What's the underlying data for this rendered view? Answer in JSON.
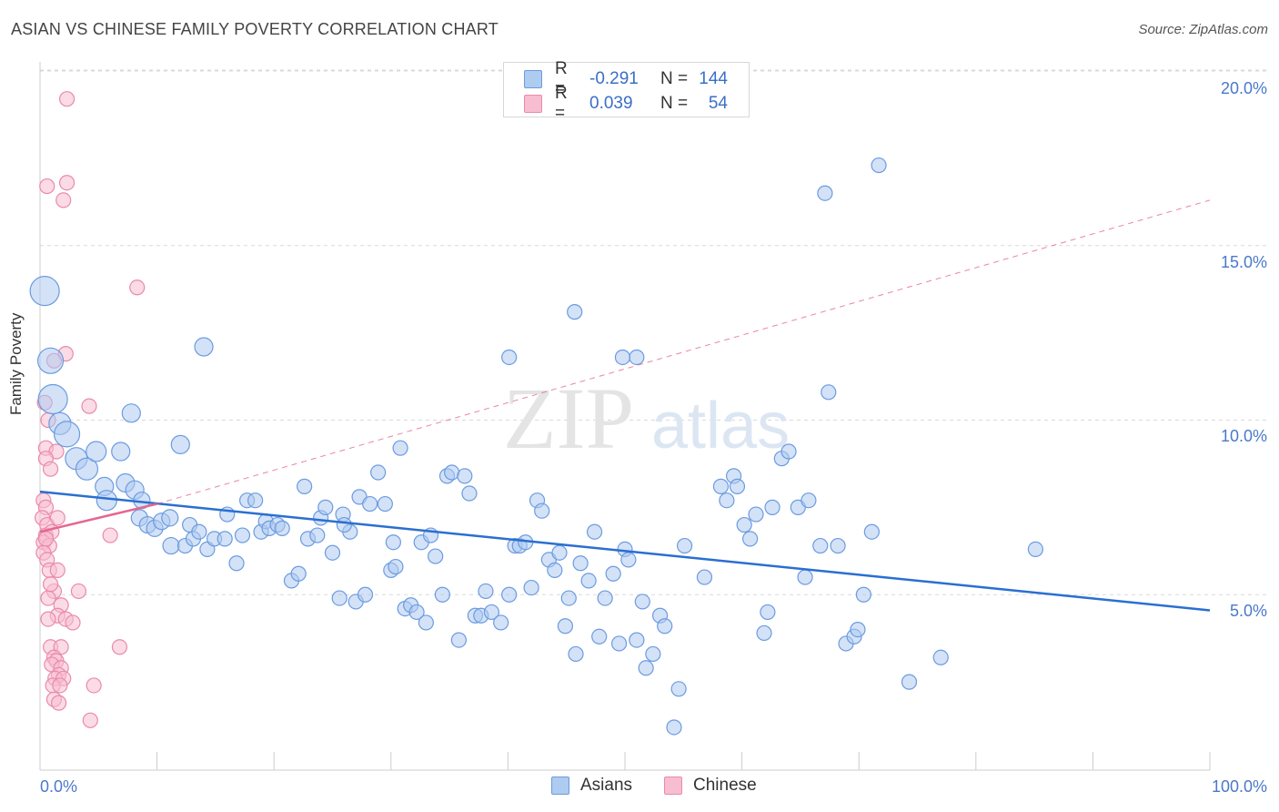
{
  "title": "ASIAN VS CHINESE FAMILY POVERTY CORRELATION CHART",
  "source": "Source: ZipAtlas.com",
  "watermark": {
    "zip": "ZIP",
    "atlas": "atlas"
  },
  "legend_top": {
    "rows": [
      {
        "r_label": "R =",
        "r_value": "-0.291",
        "n_label": "N =",
        "n_value": "144"
      },
      {
        "r_label": "R =",
        "r_value": "0.039",
        "n_label": "N =",
        "n_value": "54"
      }
    ]
  },
  "legend_bottom": {
    "series1": "Asians",
    "series2": "Chinese"
  },
  "colors": {
    "asian_fill": "#aecbf0",
    "asian_stroke": "#6b9be0",
    "asian_line": "#2a6fd1",
    "chinese_fill": "#f7bdd0",
    "chinese_stroke": "#e98aab",
    "chinese_line": "#e4678f",
    "grid": "#d9d9d9",
    "tick_text": "#4a79c9"
  },
  "chart_data": {
    "type": "scatter",
    "title": "ASIAN VS CHINESE FAMILY POVERTY CORRELATION CHART",
    "xlabel": "",
    "ylabel": "Family Poverty",
    "xlim": [
      0,
      100
    ],
    "ylim": [
      0,
      20
    ],
    "x_tick_labels": [
      "0.0%",
      "100.0%"
    ],
    "y_ticks": [
      5,
      10,
      15,
      20
    ],
    "y_tick_labels": [
      "5.0%",
      "10.0%",
      "15.0%",
      "20.0%"
    ],
    "series": [
      {
        "name": "Asians",
        "r": -0.291,
        "n": 144,
        "trend": {
          "x": [
            0,
            100
          ],
          "y": [
            7.95,
            4.55
          ]
        },
        "points": [
          [
            0.4,
            13.7,
            16
          ],
          [
            0.9,
            11.7,
            14
          ],
          [
            1.1,
            10.6,
            16
          ],
          [
            1.7,
            9.9,
            12
          ],
          [
            2.3,
            9.6,
            14
          ],
          [
            3.1,
            8.9,
            12
          ],
          [
            4.0,
            8.6,
            12
          ],
          [
            4.8,
            9.1,
            11
          ],
          [
            5.5,
            8.1,
            10
          ],
          [
            5.7,
            7.7,
            11
          ],
          [
            6.9,
            9.1,
            10
          ],
          [
            7.3,
            8.2,
            10
          ],
          [
            7.8,
            10.2,
            10
          ],
          [
            8.1,
            8.0,
            10
          ],
          [
            8.7,
            7.7,
            9
          ],
          [
            8.5,
            7.2,
            9
          ],
          [
            9.2,
            7.0,
            9
          ],
          [
            9.8,
            6.9,
            9
          ],
          [
            10.4,
            7.1,
            9
          ],
          [
            11.1,
            7.2,
            9
          ],
          [
            11.2,
            6.4,
            9
          ],
          [
            12.0,
            9.3,
            10
          ],
          [
            12.4,
            6.4,
            8
          ],
          [
            12.8,
            7.0,
            8
          ],
          [
            13.1,
            6.6,
            8
          ],
          [
            13.6,
            6.8,
            8
          ],
          [
            14.3,
            6.3,
            8
          ],
          [
            14.9,
            6.6,
            8
          ],
          [
            14.0,
            12.1,
            10
          ],
          [
            15.8,
            6.6,
            8
          ],
          [
            16.0,
            7.3,
            8
          ],
          [
            16.8,
            5.9,
            8
          ],
          [
            17.3,
            6.7,
            8
          ],
          [
            17.7,
            7.7,
            8
          ],
          [
            18.4,
            7.7,
            8
          ],
          [
            18.9,
            6.8,
            8
          ],
          [
            19.3,
            7.1,
            8
          ],
          [
            19.6,
            6.9,
            8
          ],
          [
            20.3,
            7.0,
            8
          ],
          [
            20.7,
            6.9,
            8
          ],
          [
            21.5,
            5.4,
            8
          ],
          [
            22.1,
            5.6,
            8
          ],
          [
            22.6,
            8.1,
            8
          ],
          [
            22.9,
            6.6,
            8
          ],
          [
            23.7,
            6.7,
            8
          ],
          [
            24.0,
            7.2,
            8
          ],
          [
            24.4,
            7.5,
            8
          ],
          [
            25.0,
            6.2,
            8
          ],
          [
            25.6,
            4.9,
            8
          ],
          [
            25.9,
            7.3,
            8
          ],
          [
            26.5,
            6.8,
            8
          ],
          [
            27.0,
            4.8,
            8
          ],
          [
            27.3,
            7.8,
            8
          ],
          [
            27.8,
            5.0,
            8
          ],
          [
            28.2,
            7.6,
            8
          ],
          [
            28.9,
            8.5,
            8
          ],
          [
            29.5,
            7.6,
            8
          ],
          [
            30.0,
            5.7,
            8
          ],
          [
            30.4,
            5.8,
            8
          ],
          [
            30.8,
            9.2,
            8
          ],
          [
            31.2,
            4.6,
            8
          ],
          [
            31.7,
            4.7,
            8
          ],
          [
            32.2,
            4.5,
            8
          ],
          [
            32.6,
            6.5,
            8
          ],
          [
            33.0,
            4.2,
            8
          ],
          [
            33.4,
            6.7,
            8
          ],
          [
            33.8,
            6.1,
            8
          ],
          [
            34.4,
            5.0,
            8
          ],
          [
            34.8,
            8.4,
            8
          ],
          [
            35.2,
            8.5,
            8
          ],
          [
            35.8,
            3.7,
            8
          ],
          [
            36.3,
            8.4,
            8
          ],
          [
            36.7,
            7.9,
            8
          ],
          [
            37.2,
            4.4,
            8
          ],
          [
            37.7,
            4.4,
            8
          ],
          [
            38.1,
            5.1,
            8
          ],
          [
            38.6,
            4.5,
            8
          ],
          [
            39.4,
            4.2,
            8
          ],
          [
            40.1,
            5.0,
            8
          ],
          [
            40.6,
            6.4,
            8
          ],
          [
            41.0,
            6.4,
            8
          ],
          [
            41.5,
            6.5,
            8
          ],
          [
            42.0,
            5.2,
            8
          ],
          [
            42.5,
            7.7,
            8
          ],
          [
            42.9,
            7.4,
            8
          ],
          [
            43.5,
            6.0,
            8
          ],
          [
            44.0,
            5.7,
            8
          ],
          [
            44.4,
            6.2,
            8
          ],
          [
            44.9,
            4.1,
            8
          ],
          [
            45.2,
            4.9,
            8
          ],
          [
            45.8,
            3.3,
            8
          ],
          [
            46.2,
            5.9,
            8
          ],
          [
            46.9,
            5.4,
            8
          ],
          [
            47.4,
            6.8,
            8
          ],
          [
            47.8,
            3.8,
            8
          ],
          [
            48.3,
            4.9,
            8
          ],
          [
            49.0,
            5.6,
            8
          ],
          [
            49.5,
            3.6,
            8
          ],
          [
            50.0,
            6.3,
            8
          ],
          [
            50.3,
            6.0,
            8
          ],
          [
            51.0,
            3.7,
            8
          ],
          [
            51.5,
            4.8,
            8
          ],
          [
            51.8,
            2.9,
            8
          ],
          [
            52.4,
            3.3,
            8
          ],
          [
            53.0,
            4.4,
            8
          ],
          [
            53.4,
            4.1,
            8
          ],
          [
            54.2,
            1.2,
            8
          ],
          [
            54.6,
            2.3,
            8
          ],
          [
            55.1,
            6.4,
            8
          ],
          [
            56.8,
            5.5,
            8
          ],
          [
            58.2,
            8.1,
            8
          ],
          [
            58.7,
            7.7,
            8
          ],
          [
            59.3,
            8.4,
            8
          ],
          [
            59.6,
            8.1,
            8
          ],
          [
            60.2,
            7.0,
            8
          ],
          [
            60.7,
            6.6,
            8
          ],
          [
            61.2,
            7.3,
            8
          ],
          [
            61.9,
            3.9,
            8
          ],
          [
            62.2,
            4.5,
            8
          ],
          [
            62.6,
            7.5,
            8
          ],
          [
            63.4,
            8.9,
            8
          ],
          [
            64.0,
            9.1,
            8
          ],
          [
            64.8,
            7.5,
            8
          ],
          [
            65.4,
            5.5,
            8
          ],
          [
            65.7,
            7.7,
            8
          ],
          [
            66.7,
            6.4,
            8
          ],
          [
            67.1,
            16.5,
            8
          ],
          [
            67.4,
            10.8,
            8
          ],
          [
            68.2,
            6.4,
            8
          ],
          [
            68.9,
            3.6,
            8
          ],
          [
            69.6,
            3.8,
            8
          ],
          [
            69.9,
            4.0,
            8
          ],
          [
            70.4,
            5.0,
            8
          ],
          [
            71.1,
            6.8,
            8
          ],
          [
            71.7,
            17.3,
            8
          ],
          [
            74.3,
            2.5,
            8
          ],
          [
            77.0,
            3.2,
            8
          ],
          [
            85.1,
            6.3,
            8
          ],
          [
            51.0,
            11.8,
            8
          ],
          [
            49.8,
            11.8,
            8
          ],
          [
            45.7,
            13.1,
            8
          ],
          [
            40.1,
            11.8,
            8
          ],
          [
            26.0,
            7.0,
            8
          ],
          [
            30.2,
            6.5,
            8
          ]
        ]
      },
      {
        "name": "Chinese",
        "r": 0.039,
        "n": 54,
        "trend": {
          "x": [
            0,
            10
          ],
          "y": [
            6.8,
            7.6
          ]
        },
        "trend_dashed": {
          "x": [
            10,
            100
          ],
          "y": [
            7.6,
            16.3
          ]
        },
        "points": [
          [
            2.3,
            19.2,
            8
          ],
          [
            0.6,
            16.7,
            8
          ],
          [
            2.3,
            16.8,
            8
          ],
          [
            2.0,
            16.3,
            8
          ],
          [
            8.3,
            13.8,
            8
          ],
          [
            1.2,
            11.7,
            8
          ],
          [
            2.2,
            11.9,
            8
          ],
          [
            0.4,
            10.5,
            8
          ],
          [
            4.2,
            10.4,
            8
          ],
          [
            0.7,
            10.0,
            8
          ],
          [
            0.5,
            9.2,
            8
          ],
          [
            1.4,
            9.1,
            8
          ],
          [
            0.5,
            8.9,
            8
          ],
          [
            0.9,
            8.6,
            8
          ],
          [
            0.3,
            7.7,
            8
          ],
          [
            0.5,
            7.5,
            8
          ],
          [
            0.2,
            7.2,
            8
          ],
          [
            0.6,
            7.0,
            8
          ],
          [
            1.5,
            7.2,
            8
          ],
          [
            0.5,
            6.7,
            8
          ],
          [
            1.0,
            6.8,
            8
          ],
          [
            6.0,
            6.7,
            8
          ],
          [
            0.3,
            6.5,
            8
          ],
          [
            0.8,
            6.4,
            8
          ],
          [
            0.3,
            6.2,
            8
          ],
          [
            0.6,
            6.0,
            8
          ],
          [
            0.8,
            5.7,
            8
          ],
          [
            1.5,
            5.7,
            8
          ],
          [
            1.2,
            5.1,
            8
          ],
          [
            3.3,
            5.1,
            8
          ],
          [
            0.7,
            4.9,
            8
          ],
          [
            1.8,
            4.7,
            8
          ],
          [
            1.5,
            4.4,
            8
          ],
          [
            2.2,
            4.3,
            8
          ],
          [
            0.7,
            4.3,
            8
          ],
          [
            2.8,
            4.2,
            8
          ],
          [
            0.9,
            3.5,
            8
          ],
          [
            1.8,
            3.5,
            8
          ],
          [
            6.8,
            3.5,
            8
          ],
          [
            1.2,
            3.2,
            8
          ],
          [
            1.4,
            3.1,
            8
          ],
          [
            1.0,
            3.0,
            8
          ],
          [
            1.8,
            2.9,
            8
          ],
          [
            1.6,
            2.7,
            8
          ],
          [
            1.3,
            2.6,
            8
          ],
          [
            2.0,
            2.6,
            8
          ],
          [
            4.6,
            2.4,
            8
          ],
          [
            1.1,
            2.4,
            8
          ],
          [
            1.7,
            2.4,
            8
          ],
          [
            1.2,
            2.0,
            8
          ],
          [
            1.6,
            1.9,
            8
          ],
          [
            4.3,
            1.4,
            8
          ],
          [
            0.5,
            6.6,
            8
          ],
          [
            0.9,
            5.3,
            8
          ]
        ]
      }
    ]
  }
}
